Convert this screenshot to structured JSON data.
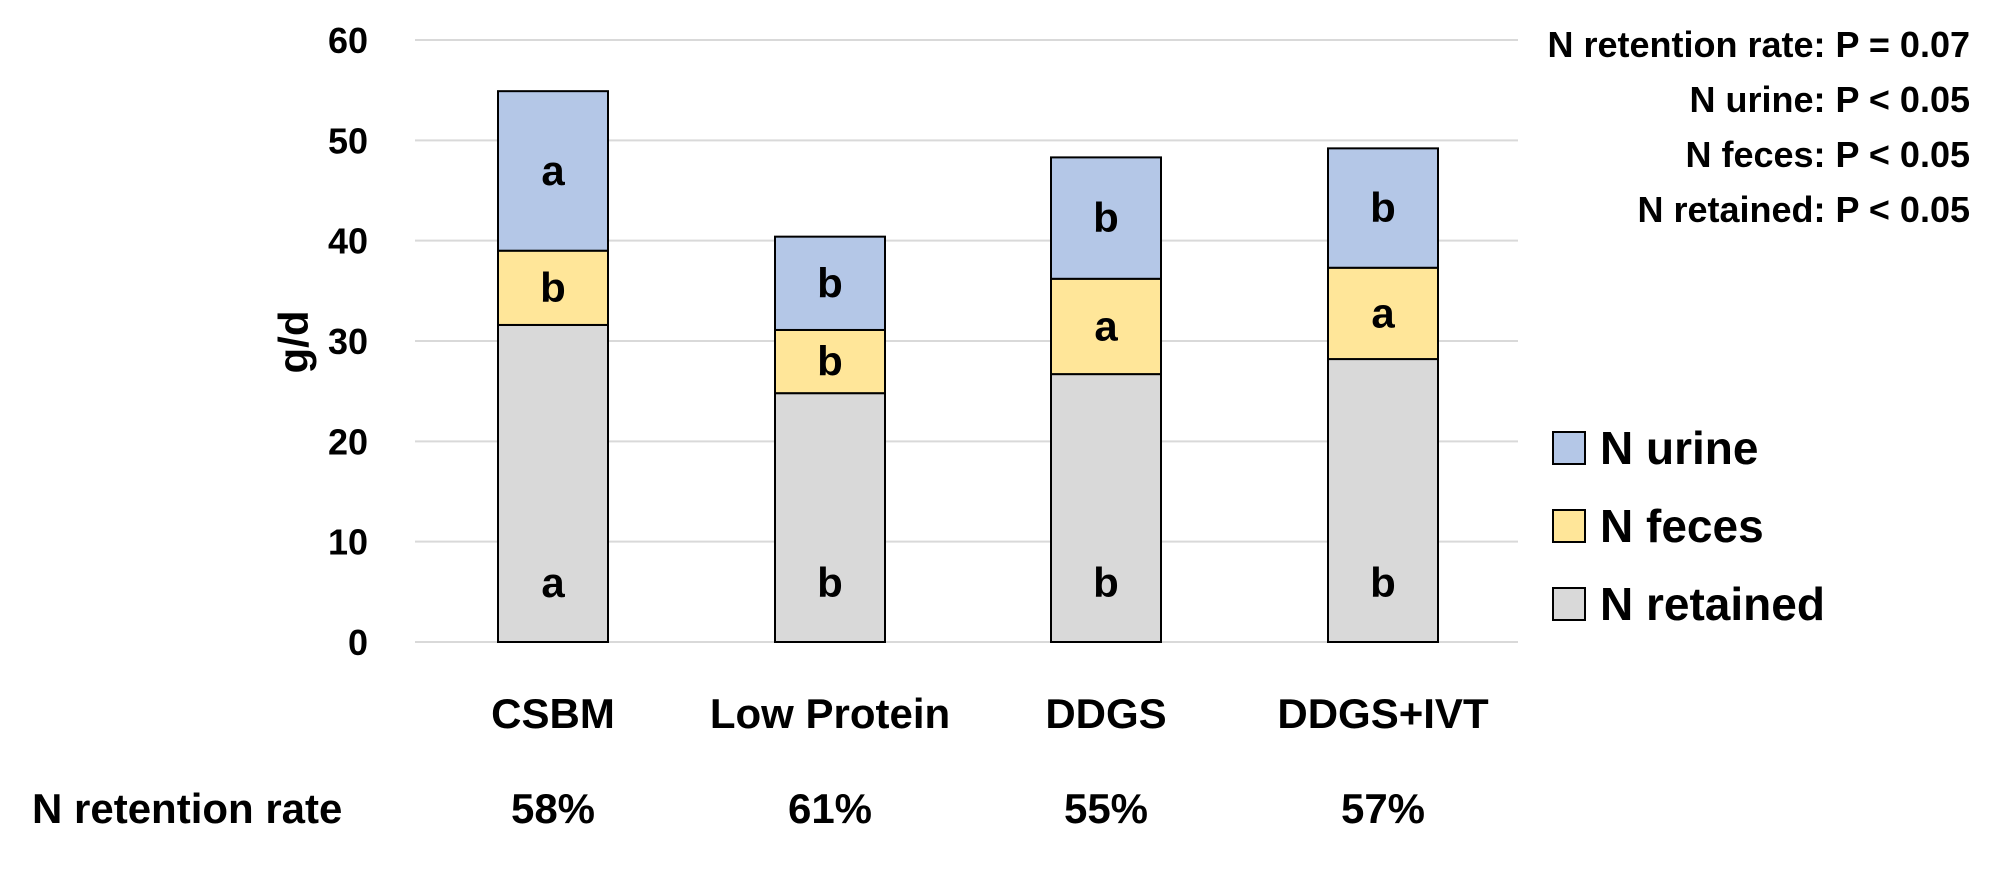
{
  "chart_data": {
    "type": "bar",
    "stacked": true,
    "categories": [
      "CSBM",
      "Low Protein",
      "DDGS",
      "DDGS+IVT"
    ],
    "series": [
      {
        "name": "N retained",
        "color": "#d9d9d9",
        "values": [
          31.6,
          24.8,
          26.7,
          28.2
        ],
        "letters": [
          "a",
          "b",
          "b",
          "b"
        ]
      },
      {
        "name": "N feces",
        "color": "#ffe699",
        "values": [
          7.4,
          6.3,
          9.5,
          9.1
        ],
        "letters": [
          "b",
          "b",
          "a",
          "a"
        ]
      },
      {
        "name": "N urine",
        "color": "#b4c7e7",
        "values": [
          15.9,
          9.3,
          12.1,
          11.9
        ],
        "letters": [
          "a",
          "b",
          "b",
          "b"
        ]
      }
    ],
    "ylabel": "g/d",
    "ylim": [
      0,
      60
    ],
    "yticks": [
      0,
      10,
      20,
      30,
      40,
      50,
      60
    ],
    "grid": true,
    "legend_position": "right",
    "legend_order": [
      "N urine",
      "N feces",
      "N retained"
    ],
    "retention_rate": {
      "label": "N retention rate",
      "values": [
        "58%",
        "61%",
        "55%",
        "57%"
      ]
    },
    "stats_annotations": [
      "N retention rate: P = 0.07",
      "N urine: P < 0.05",
      "N feces: P < 0.05",
      "N retained: P < 0.05"
    ]
  }
}
